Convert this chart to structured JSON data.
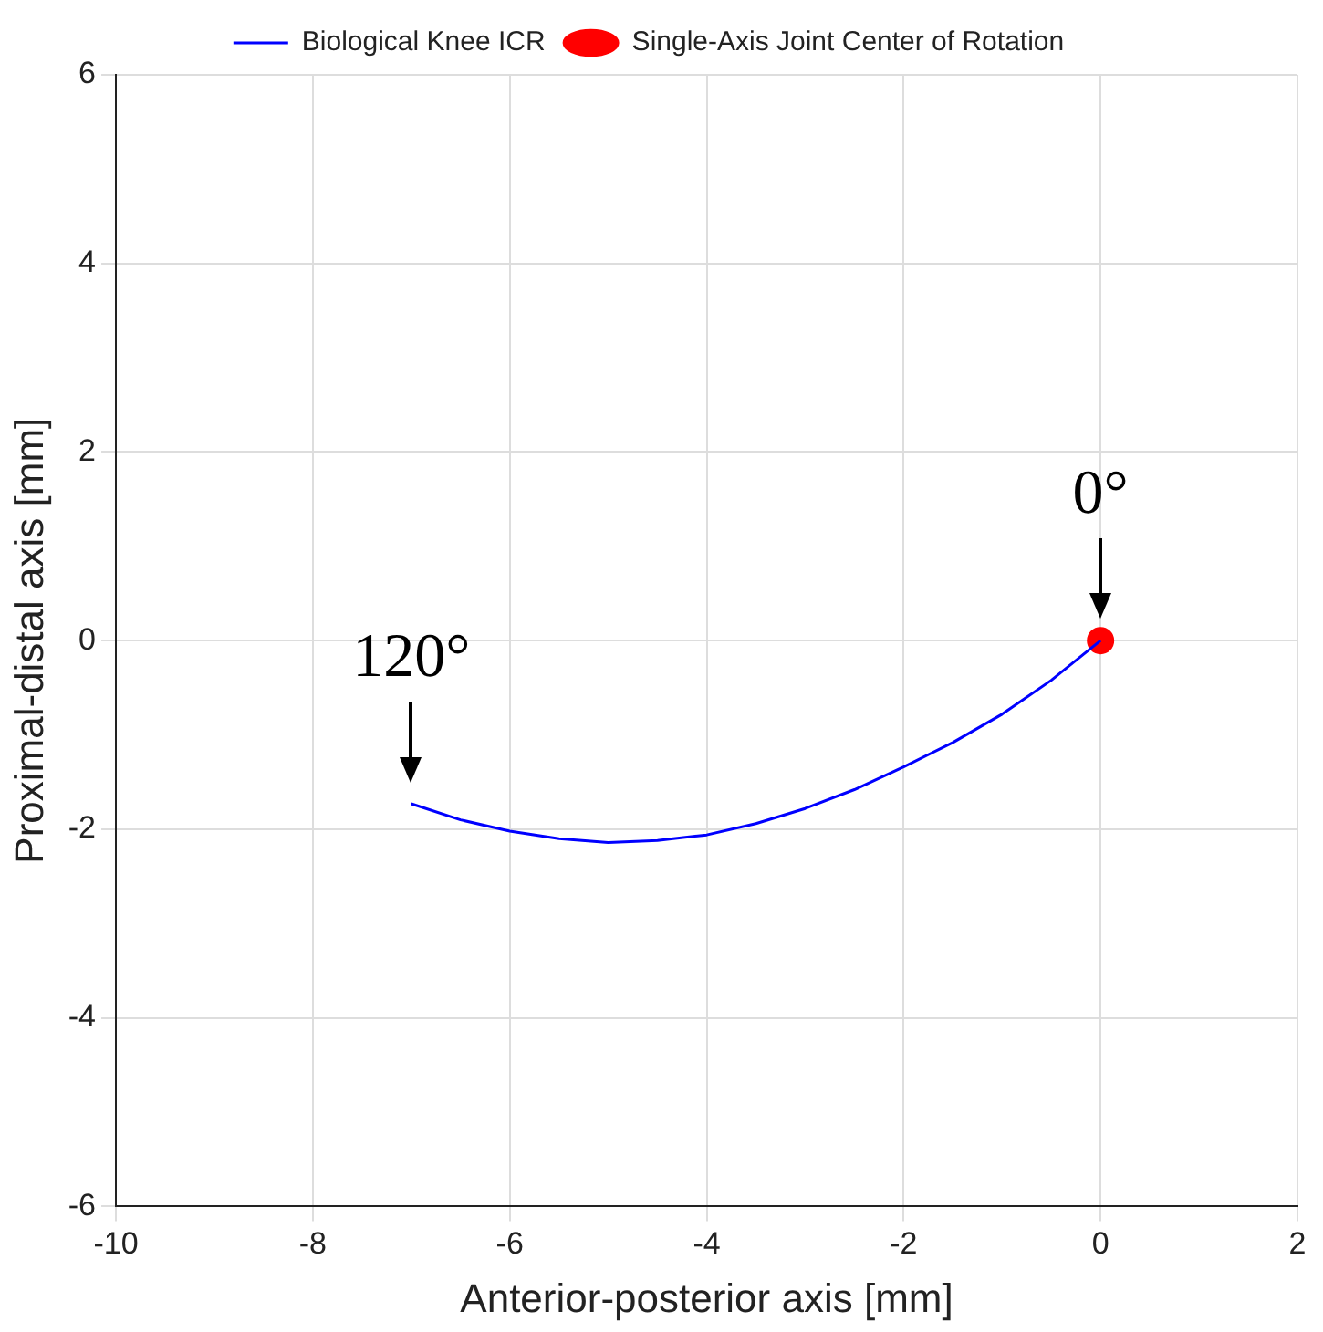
{
  "chart_data": {
    "type": "line",
    "xlabel": "Anterior-posterior axis [mm]",
    "ylabel": "Proximal-distal axis [mm]",
    "xlim": [
      -10,
      2
    ],
    "xticks": [
      -10,
      -8,
      -6,
      -4,
      -2,
      0,
      2
    ],
    "ylim": [
      -6,
      6
    ],
    "yticks": [
      -6,
      -4,
      -2,
      0,
      2,
      4,
      6
    ],
    "grid": true,
    "legend": "top",
    "series": [
      {
        "name": "Biological Knee ICR",
        "color": "#0000ff",
        "marker": "none",
        "x": [
          -7,
          -6.5,
          -6,
          -5.5,
          -5,
          -4.5,
          -4,
          -3.5,
          -3,
          -2.5,
          -2,
          -1.5,
          -1,
          -0.5,
          0
        ],
        "values": [
          -1.73,
          -1.9,
          -2.02,
          -2.1,
          -2.14,
          -2.12,
          -2.06,
          -1.94,
          -1.78,
          -1.58,
          -1.34,
          -1.08,
          -0.78,
          -0.42,
          0
        ]
      },
      {
        "name": "Single-Axis Joint Center of Rotation",
        "type": "scatter",
        "color": "#ff0000",
        "marker": "circle",
        "x": [
          0
        ],
        "values": [
          0
        ]
      }
    ],
    "annotations": [
      {
        "text": "0°",
        "x": 0,
        "y": 0
      },
      {
        "text": "120°",
        "x": -7,
        "y": -1.73
      }
    ]
  }
}
